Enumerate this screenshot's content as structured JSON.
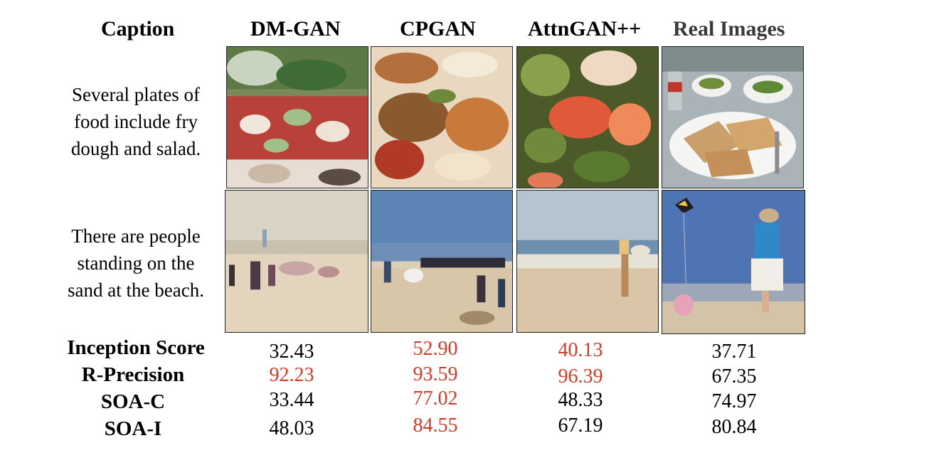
{
  "headers": {
    "caption": "Caption",
    "dmgan": "DM-GAN",
    "cpgan": "CPGAN",
    "attngan": "AttnGAN++",
    "real": "Real Images"
  },
  "captions": {
    "row1": [
      "Several plates of",
      "food include fry",
      "dough and salad."
    ],
    "row2": [
      "There are people",
      "standing on the",
      "sand at the beach."
    ]
  },
  "metrics": [
    {
      "label": "Inception Score",
      "values": [
        "32.43",
        "52.90",
        "40.13",
        "37.71"
      ]
    },
    {
      "label": "R-Precision",
      "values": [
        "92.23",
        "93.59",
        "96.39",
        "67.35"
      ]
    },
    {
      "label": "SOA-C",
      "values": [
        "33.44",
        "77.02",
        "48.33",
        "74.97"
      ]
    },
    {
      "label": "SOA-I",
      "values": [
        "48.03",
        "84.55",
        "67.19",
        "80.84"
      ]
    }
  ],
  "colors": {
    "highlight": "#d93a26",
    "text": "#000000"
  }
}
